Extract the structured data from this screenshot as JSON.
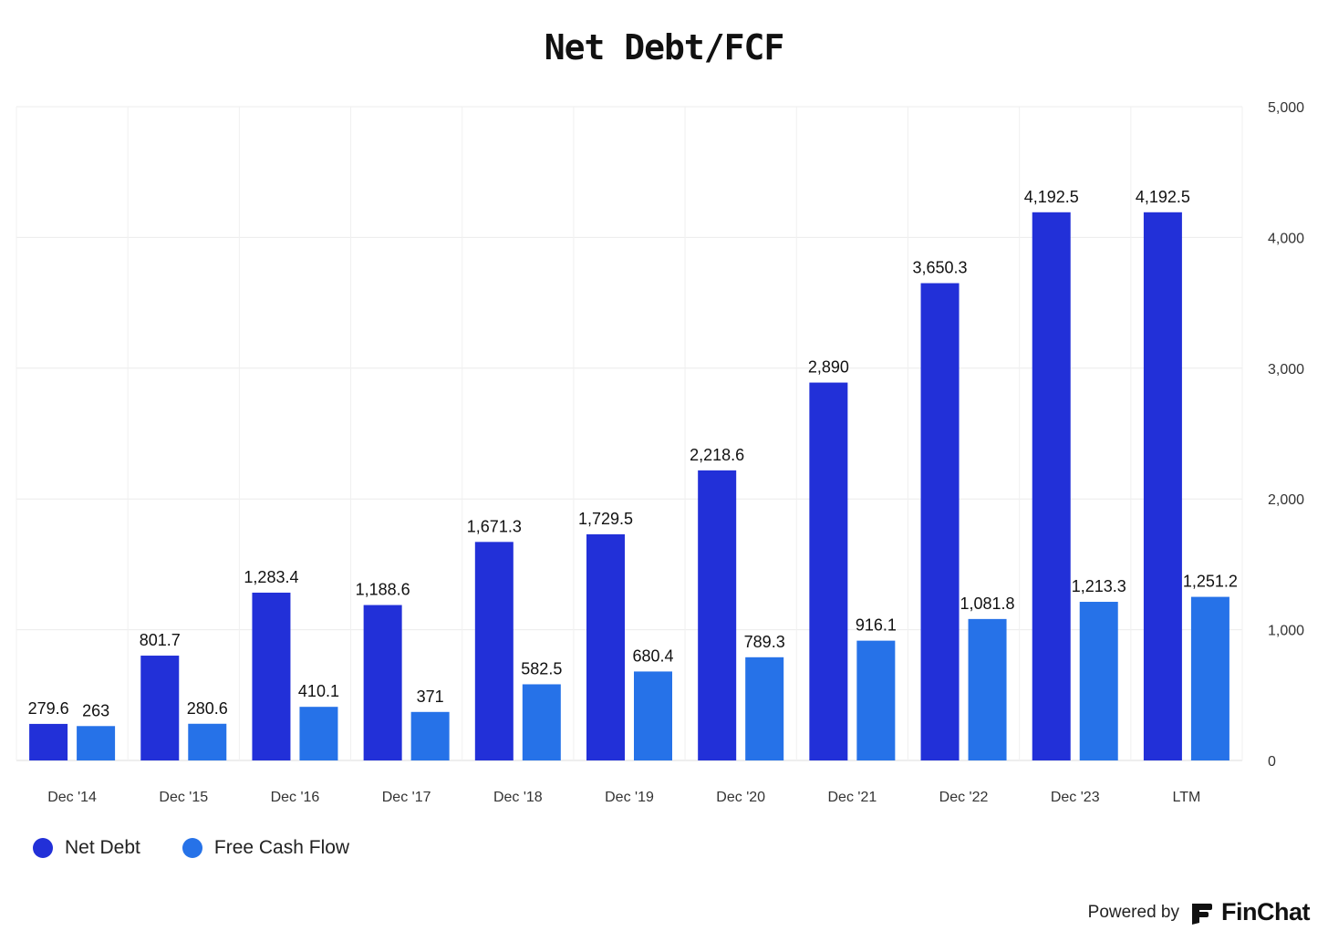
{
  "chart_data": {
    "type": "bar",
    "title": "Net Debt/FCF",
    "categories": [
      "Dec '14",
      "Dec '15",
      "Dec '16",
      "Dec '17",
      "Dec '18",
      "Dec '19",
      "Dec '20",
      "Dec '21",
      "Dec '22",
      "Dec '23",
      "LTM"
    ],
    "series": [
      {
        "name": "Net Debt",
        "color": "#2230d8",
        "values": [
          279.6,
          801.7,
          1283.4,
          1188.6,
          1671.3,
          1729.5,
          2218.6,
          2890,
          3650.3,
          4192.5,
          4192.5
        ],
        "labels": [
          "279.6",
          "801.7",
          "1,283.4",
          "1,188.6",
          "1,671.3",
          "1,729.5",
          "2,218.6",
          "2,890",
          "3,650.3",
          "4,192.5",
          "4,192.5"
        ]
      },
      {
        "name": "Free Cash Flow",
        "color": "#2672e8",
        "values": [
          263,
          280.6,
          410.1,
          371,
          582.5,
          680.4,
          789.3,
          916.1,
          1081.8,
          1213.3,
          1251.2
        ],
        "labels": [
          "263",
          "280.6",
          "410.1",
          "371",
          "582.5",
          "680.4",
          "789.3",
          "916.1",
          "1,081.8",
          "1,213.3",
          "1,251.2"
        ]
      }
    ],
    "ylim": [
      0,
      5000
    ],
    "yticks": [
      0,
      1000,
      2000,
      3000,
      4000,
      5000
    ],
    "ytick_labels": [
      "0",
      "1,000",
      "2,000",
      "3,000",
      "4,000",
      "5,000"
    ],
    "y_axis_position": "right",
    "grid": true,
    "legend_position": "bottom-left"
  },
  "footer": {
    "powered_by": "Powered by",
    "brand": "FinChat"
  }
}
